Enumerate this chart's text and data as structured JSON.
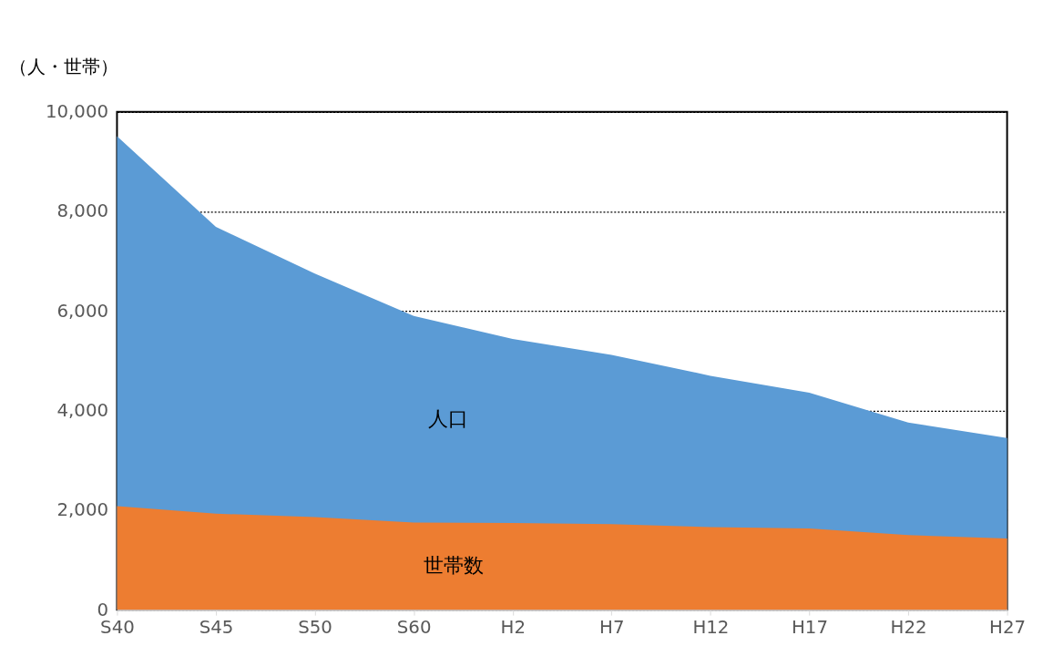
{
  "chart_data": {
    "type": "area",
    "ylabel": "（人・世帯）",
    "categories": [
      "S40",
      "S45",
      "S50",
      "S60",
      "H2",
      "H7",
      "H12",
      "H17",
      "H22",
      "H27"
    ],
    "series": [
      {
        "name": "人口",
        "color": "#5b9bd5",
        "values": [
          9510,
          7690,
          6750,
          5900,
          5440,
          5120,
          4700,
          4360,
          3760,
          3450
        ]
      },
      {
        "name": "世帯数",
        "color": "#ed7d31",
        "values": [
          2080,
          1930,
          1860,
          1750,
          1740,
          1720,
          1660,
          1630,
          1500,
          1430
        ]
      }
    ],
    "ylim": [
      0,
      10000
    ],
    "yticks": [
      0,
      {
        "value": 2000,
        "label": "2,000"
      },
      {
        "value": 4000,
        "label": "4,000"
      },
      {
        "value": 6000,
        "label": "6,000"
      },
      {
        "value": 8000,
        "label": "8,000"
      },
      {
        "value": 10000,
        "label": "10,000"
      }
    ],
    "grid": "y"
  }
}
